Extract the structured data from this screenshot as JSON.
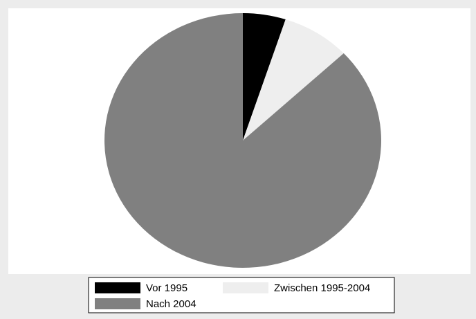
{
  "chart_data": {
    "type": "pie",
    "categories": [
      "Vor 1995",
      "Zwischen 1995-2004",
      "Nach 2004"
    ],
    "values": [
      5,
      8,
      87
    ],
    "colors": [
      "#000000",
      "#eeeeee",
      "#808080"
    ],
    "legend": "bottom"
  }
}
